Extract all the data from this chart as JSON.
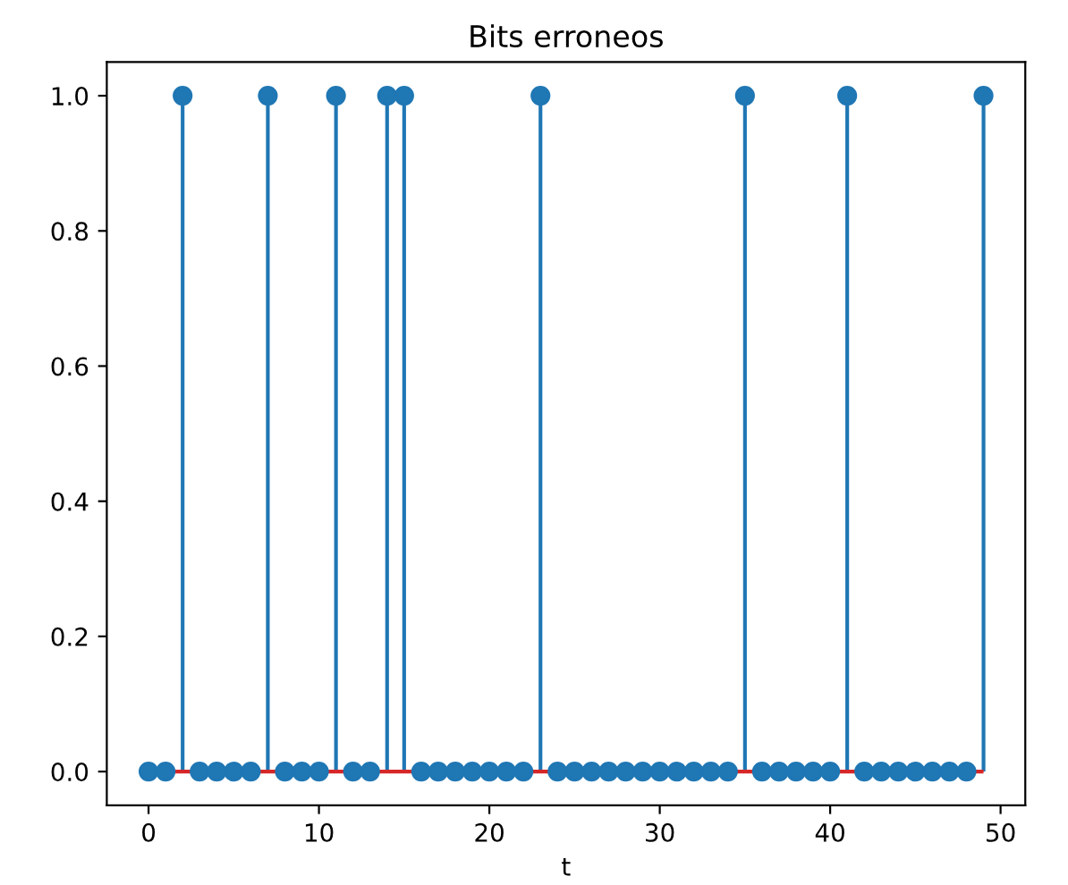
{
  "chart_data": {
    "type": "lollipop",
    "title": "Bits erroneos",
    "xlabel": "t",
    "x": [
      0,
      1,
      2,
      3,
      4,
      5,
      6,
      7,
      8,
      9,
      10,
      11,
      12,
      13,
      14,
      15,
      16,
      17,
      18,
      19,
      20,
      21,
      22,
      23,
      24,
      25,
      26,
      27,
      28,
      29,
      30,
      31,
      32,
      33,
      34,
      35,
      36,
      37,
      38,
      39,
      40,
      41,
      42,
      43,
      44,
      45,
      46,
      47,
      48,
      49
    ],
    "values": [
      0,
      0,
      1,
      0,
      0,
      0,
      0,
      1,
      0,
      0,
      0,
      1,
      0,
      0,
      1,
      1,
      0,
      0,
      0,
      0,
      0,
      0,
      0,
      1,
      0,
      0,
      0,
      0,
      0,
      0,
      0,
      0,
      0,
      0,
      0,
      1,
      0,
      0,
      0,
      0,
      0,
      1,
      0,
      0,
      0,
      0,
      0,
      0,
      0,
      1
    ],
    "color": "#1f77b4",
    "marker": "circle",
    "ref_lines": [
      {
        "axis": "y",
        "value": 0,
        "color": "#d62728"
      }
    ],
    "xlim": [
      -2.45,
      51.45
    ],
    "ylim": [
      -0.05,
      1.05
    ],
    "xticks": [
      0,
      10,
      20,
      30,
      40,
      50
    ],
    "yticks": [
      {
        "value": 0,
        "label": "0.0"
      },
      {
        "value": 0.2,
        "label": "0.2"
      },
      {
        "value": 0.4,
        "label": "0.4"
      },
      {
        "value": 0.6,
        "label": "0.6"
      },
      {
        "value": 0.8,
        "label": "0.8"
      },
      {
        "value": 1,
        "label": "1.0"
      }
    ],
    "grid": false
  }
}
